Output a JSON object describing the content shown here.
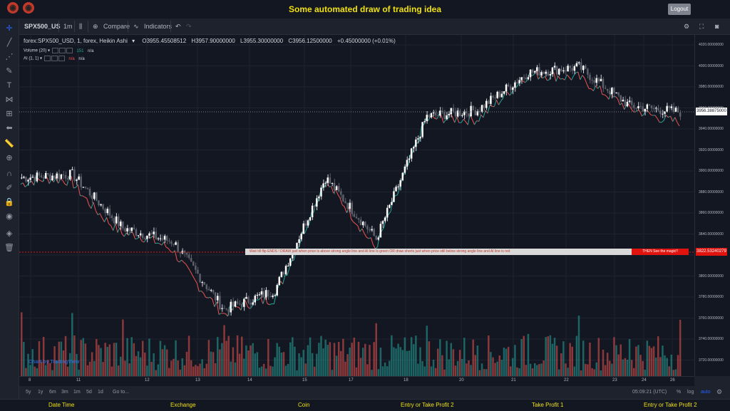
{
  "header": {
    "title": "Some automated draw of trading idea",
    "logout_label": "Logout"
  },
  "toolbar": {
    "symbol": "SPX500_US",
    "interval": "1m",
    "compare_label": "Compare",
    "indicators_label": "Indicators"
  },
  "legend": {
    "symbol_line": "forex:SPX500_USD, 1, forex, Heikin Ashi",
    "open": "O3955.45508512",
    "high": "H3957.90000000",
    "low": "L3955.30000000",
    "close": "C3956.12500000",
    "change": "+0.45000000 (+0.01%)",
    "volume_label": "Volume (20)",
    "volume_value": "151",
    "volume_na": "n/a",
    "ai_label": "AI (1, 1)",
    "ai_na1": "n/a",
    "ai_na2": "n/a"
  },
  "annotation": {
    "text": "Wait till flip ENDS !   DRAW just when  price is above strong angle line and AI line is green          OR          draw shorts just when price still below strong angle line and AI line is red",
    "highlight": "THEN See the magic!!",
    "price": "3822.53240279"
  },
  "current_price": "3956.38875000",
  "price_axis": [
    "4020.00000000",
    "4000.00000000",
    "3980.00000000",
    "3960.00000000",
    "3940.00000000",
    "3920.00000000",
    "3900.00000000",
    "3880.00000000",
    "3860.00000000",
    "3840.00000000",
    "3820.00000000",
    "3800.00000000",
    "3780.00000000",
    "3760.00000000",
    "3740.00000000",
    "3720.00000000"
  ],
  "time_axis": [
    "8",
    "11",
    "12",
    "13",
    "14",
    "15",
    "17",
    "18",
    "20",
    "21",
    "22",
    "23",
    "24",
    "26"
  ],
  "bottom": {
    "ranges": [
      "5y",
      "1y",
      "6m",
      "3m",
      "1m",
      "5d",
      "1d"
    ],
    "goto": "Go to...",
    "time": "05:09:21 (UTC)",
    "pct": "%",
    "log": "log",
    "auto": "auto"
  },
  "watermark": "Chart by TradingView",
  "footer": [
    "Date Time",
    "Exchange",
    "Coin",
    "Entry or Take Profit 2",
    "Take Profit 1",
    "Entry or Take Profit 2"
  ],
  "chart_data": {
    "type": "candlestick",
    "title": "forex:SPX500_USD, 1, forex, Heikin Ashi",
    "x": [
      "8",
      "11",
      "12",
      "13",
      "14",
      "15",
      "17",
      "18",
      "20",
      "21",
      "22",
      "23",
      "24",
      "26"
    ],
    "close": [
      3895,
      3898,
      3848,
      3835,
      3772,
      3790,
      3895,
      3838,
      3952,
      3958,
      3993,
      3998,
      3962,
      3956
    ],
    "volume": [
      40,
      35,
      30,
      45,
      55,
      60,
      35,
      40,
      30,
      25,
      35,
      45,
      30,
      25
    ],
    "ylim": [
      3710,
      4028
    ],
    "colors": {
      "up": "#ffffff",
      "down": "#5d606b",
      "ai_up": "#26a69a",
      "ai_down": "#ef5350",
      "vol_up": "#26a69a",
      "vol_down": "#ef5350"
    }
  }
}
